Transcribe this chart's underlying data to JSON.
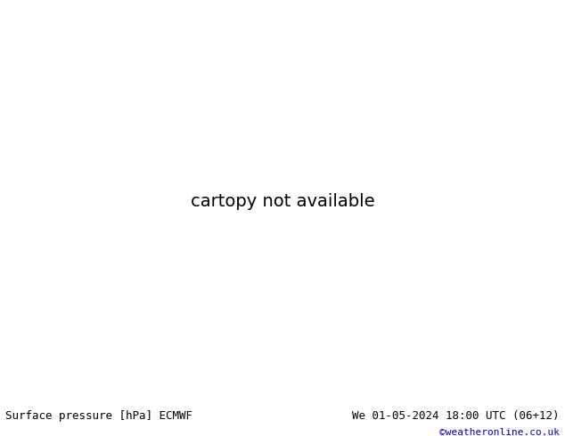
{
  "title_left": "Surface pressure [hPa] ECMWF",
  "title_right": "We 01-05-2024 18:00 UTC (06+12)",
  "copyright": "©weatheronline.co.uk",
  "bg_color": "#dcdcdc",
  "land_color": "#c8e6b0",
  "ocean_color": "#c8d8e8",
  "border_color": "#888888",
  "contour_blue": "#0000bb",
  "contour_black": "#000000",
  "contour_red": "#cc0000",
  "footer_bg": "#ffffff",
  "footer_text_color": "#000000",
  "copyright_color": "#0000cc",
  "footer_fontsize": 9,
  "copyright_fontsize": 8,
  "label_fontsize": 6.5,
  "map_lon_min": -25,
  "map_lon_max": 75,
  "map_lat_min": -48,
  "map_lat_max": 42,
  "dpi": 100,
  "fig_width": 6.34,
  "fig_height": 4.9
}
